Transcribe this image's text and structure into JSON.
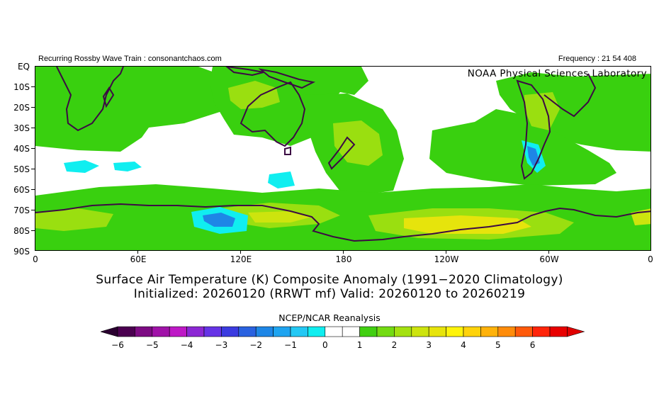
{
  "header": {
    "left": "Recurring Rossby Wave Train : consonantchaos.com",
    "right": "Frequency : 21 54 408",
    "lab": "NOAA Physical Sciences Laboratory"
  },
  "axes": {
    "y_labels": [
      "EQ",
      "10S",
      "20S",
      "30S",
      "40S",
      "50S",
      "60S",
      "70S",
      "80S",
      "90S"
    ],
    "x_labels": [
      "0",
      "60E",
      "120E",
      "180",
      "120W",
      "60W",
      "0"
    ]
  },
  "titles": {
    "line1": "Surface Air Temperature (K) Composite Anomaly (1991−2020 Climatology)",
    "line2": "Initialized: 20260120 (RRWT mf) Valid: 20260120 to 20260219",
    "source": "NCEP/NCAR Reanalysis"
  },
  "colorbar": {
    "labels": [
      "−6",
      "−5",
      "−4",
      "−3",
      "−2",
      "−1",
      "0",
      "1",
      "2",
      "3",
      "4",
      "5",
      "6"
    ],
    "colors": [
      "#4b0050",
      "#7d0b83",
      "#a012a8",
      "#be18c6",
      "#8c27d4",
      "#6633e6",
      "#3b3be0",
      "#2a62e0",
      "#1e86e6",
      "#1fa4f0",
      "#23c8f4",
      "#10eef0",
      "#ffffff",
      "#ffffff",
      "#41cf11",
      "#73db12",
      "#a4e110",
      "#cde40e",
      "#e7e40b",
      "#fff40a",
      "#ffd30a",
      "#ffb20a",
      "#ff8c0a",
      "#ff5a0a",
      "#ff240a",
      "#e80000"
    ]
  },
  "legend_colors": {
    "anom_1_15": "#39d00f",
    "anom_15_2": "#9adf10",
    "anom_2_25": "#cde40e",
    "anom_25_3": "#e6e40c",
    "anom_neg_1": "#10eef0",
    "anom_neg_15": "#23c8f4",
    "anom_neg_2": "#1e86e6",
    "coast": "#3c0a44"
  }
}
